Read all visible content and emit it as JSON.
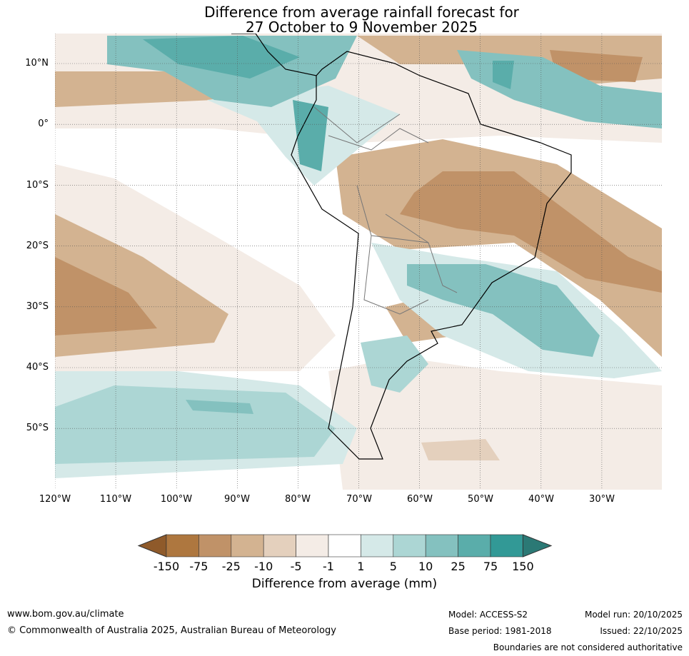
{
  "title": {
    "line1": "Difference from average rainfall forecast for",
    "line2": "27 October to 9 November 2025"
  },
  "map": {
    "lat_labels": [
      "10°N",
      "0°",
      "10°S",
      "20°S",
      "30°S",
      "40°S",
      "50°S"
    ],
    "lon_labels": [
      "120°W",
      "110°W",
      "100°W",
      "90°W",
      "80°W",
      "70°W",
      "60°W",
      "50°W",
      "40°W",
      "30°W"
    ]
  },
  "colorbar": {
    "ticks": [
      "-150",
      "-75",
      "-25",
      "-10",
      "-5",
      "-1",
      "1",
      "5",
      "10",
      "25",
      "75",
      "150"
    ],
    "colors": [
      "#8f5a2a",
      "#ae773f",
      "#c09268",
      "#d3b391",
      "#e4d0bd",
      "#f4ece6",
      "#ffffff",
      "#d5e9e8",
      "#acd6d4",
      "#84c1bf",
      "#5aadaa",
      "#329996",
      "#2b7975"
    ],
    "label": "Difference from average (mm)"
  },
  "footer": {
    "website": "www.bom.gov.au/climate",
    "copyright": "© Commonwealth of Australia 2025, Australian Bureau of Meteorology",
    "model": "Model: ACCESS-S2",
    "base_period": "Base period: 1981-2018",
    "model_run": "Model run: 20/10/2025",
    "issued": "Issued: 22/10/2025",
    "disclaimer": "Boundaries are not considered authoritative"
  }
}
